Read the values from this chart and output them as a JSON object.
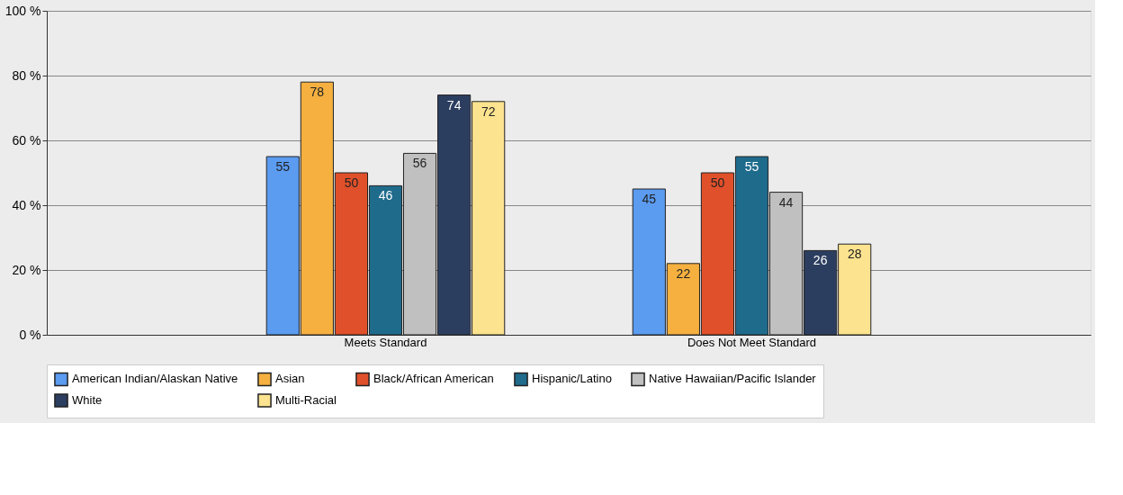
{
  "chart_data": {
    "type": "bar",
    "categories": [
      "Meets Standard",
      "Does Not Meet Standard"
    ],
    "series": [
      {
        "name": "American Indian/Alaskan Native",
        "color": "#5b9bf0",
        "values": [
          55,
          45
        ]
      },
      {
        "name": "Asian",
        "color": "#f5b040",
        "values": [
          78,
          22
        ]
      },
      {
        "name": "Black/African American",
        "color": "#e0502a",
        "values": [
          50,
          50
        ]
      },
      {
        "name": "Hispanic/Latino",
        "color": "#1f6b8c",
        "values": [
          46,
          55
        ]
      },
      {
        "name": "Native Hawaiian/Pacific Islander",
        "color": "#c0c0c0",
        "values": [
          56,
          44
        ]
      },
      {
        "name": "White",
        "color": "#2c3e60",
        "values": [
          74,
          26
        ]
      },
      {
        "name": "Multi-Racial",
        "color": "#fbe38f",
        "values": [
          72,
          28
        ]
      }
    ],
    "ylim": [
      0,
      100
    ],
    "yticks": [
      {
        "value": 0,
        "label": "0 %"
      },
      {
        "value": 20,
        "label": "20 %"
      },
      {
        "value": 40,
        "label": "40 %"
      },
      {
        "value": 60,
        "label": "60 %"
      },
      {
        "value": 80,
        "label": "80 %"
      },
      {
        "value": 100,
        "label": "100 %"
      }
    ],
    "grid": "y",
    "legend": "bottom",
    "data_labels": true
  }
}
